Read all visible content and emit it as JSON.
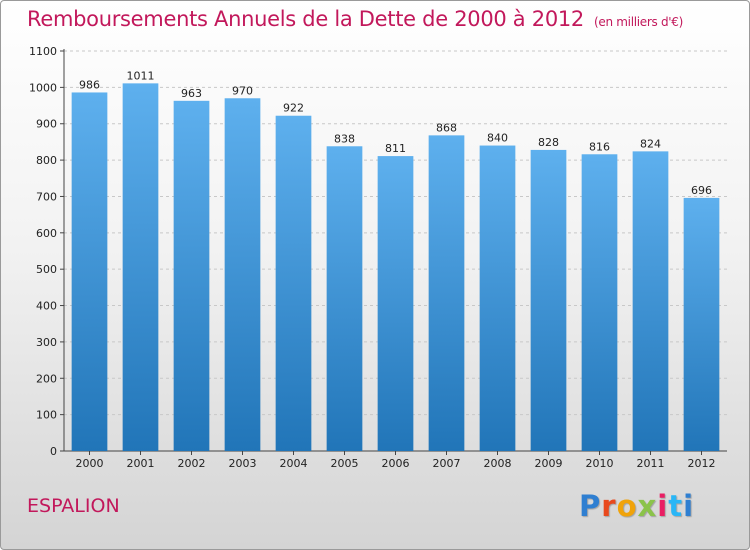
{
  "header": {
    "title": "Remboursements Annuels de la Dette de 2000 à 2012",
    "unit_note": "(en milliers d'€)"
  },
  "footer": {
    "city": "ESPALION",
    "logo_text": "Proxiti",
    "logo_letters": [
      "P",
      "r",
      "o",
      "x",
      "i",
      "t",
      "i"
    ]
  },
  "colors": {
    "title": "#c2185b",
    "bar_top": "#5eb0ee",
    "bar_bottom": "#2175b8"
  },
  "chart_data": {
    "type": "bar",
    "title": "Remboursements Annuels de la Dette de 2000 à 2012",
    "xlabel": "",
    "ylabel": "",
    "ylim": [
      0,
      1100
    ],
    "yticks": [
      0,
      100,
      200,
      300,
      400,
      500,
      600,
      700,
      800,
      900,
      1000,
      1100
    ],
    "grid": true,
    "categories": [
      "2000",
      "2001",
      "2002",
      "2003",
      "2004",
      "2005",
      "2006",
      "2007",
      "2008",
      "2009",
      "2010",
      "2011",
      "2012"
    ],
    "values": [
      986,
      1011,
      963,
      970,
      922,
      838,
      811,
      868,
      840,
      828,
      816,
      824,
      696
    ]
  }
}
